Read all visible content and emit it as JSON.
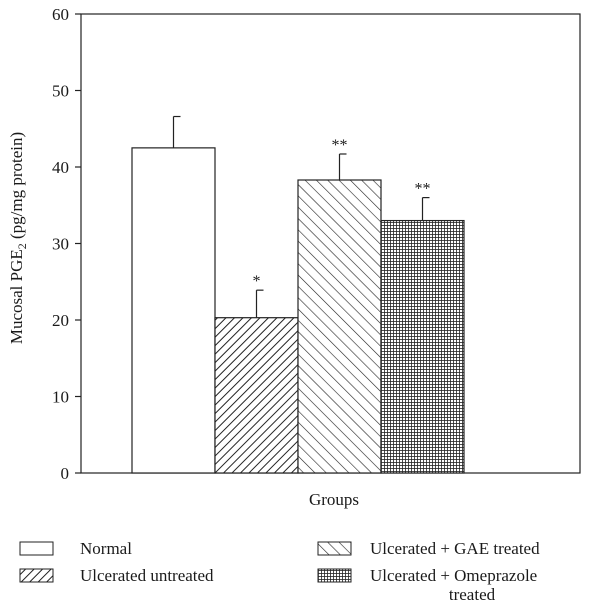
{
  "chart_data": {
    "type": "bar",
    "title": "",
    "xlabel": "Groups",
    "ylabel_main": "Mucosal PGE",
    "ylabel_sub": "2",
    "ylabel_tail": " (pg/mg protein)",
    "ylim": [
      0,
      60
    ],
    "yticks": [
      0,
      10,
      20,
      30,
      40,
      50,
      60
    ],
    "grid": false,
    "legend_position": "bottom",
    "series": [
      {
        "name": "Normal",
        "value": 42.5,
        "error": 4.1,
        "annotation": "",
        "pattern": "none"
      },
      {
        "name": "Ulcerated untreated",
        "value": 20.3,
        "error": 3.6,
        "annotation": "*",
        "pattern": "forward-hatch"
      },
      {
        "name": "Ulcerated + GAE treated",
        "value": 38.3,
        "error": 3.4,
        "annotation": "**",
        "pattern": "back-hatch"
      },
      {
        "name": "Ulcerated + Omeprazole treated",
        "value": 33.0,
        "error": 3.0,
        "annotation": "**",
        "pattern": "crosshatch"
      }
    ],
    "legend": {
      "left": [
        "Normal",
        "Ulcerated untreated"
      ],
      "right_1": "Ulcerated + GAE treated",
      "right_2_line1": "Ulcerated + Omeprazole",
      "right_2_line2": "treated"
    }
  }
}
